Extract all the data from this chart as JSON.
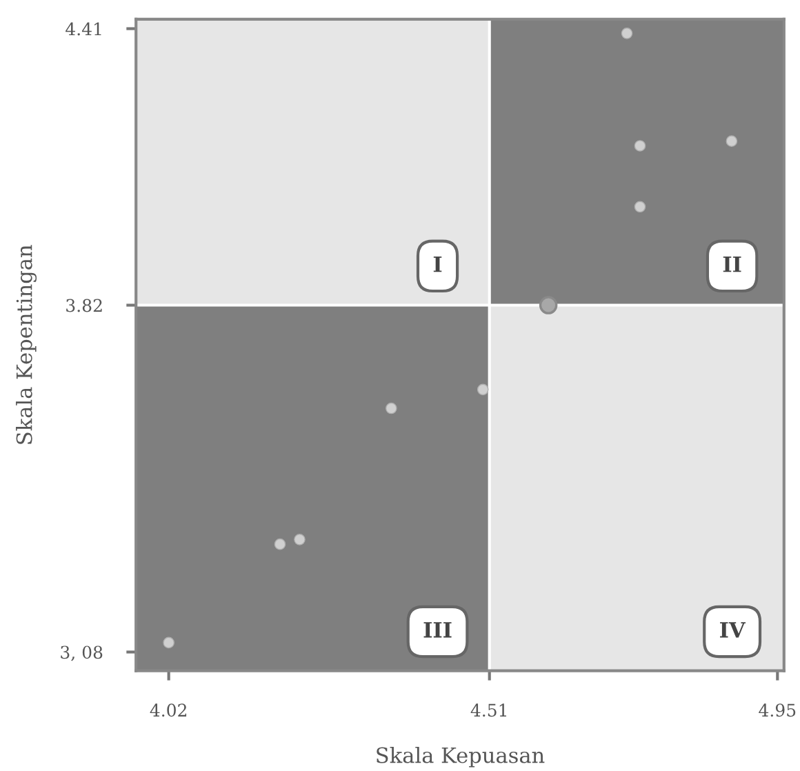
{
  "chart_data": {
    "type": "scatter",
    "xlabel": "Skala Kepuasan",
    "ylabel": "Skala Kepentingan",
    "series": [
      {
        "color": "#d0d0d0",
        "x": [
          4.72,
          4.74,
          4.88,
          4.74,
          4.36,
          4.5,
          4.19,
          4.22,
          4.02
        ],
        "values": [
          4.4,
          4.16,
          4.17,
          4.03,
          3.6,
          3.64,
          3.31,
          3.32,
          3.1
        ]
      },
      {
        "color": "#a8a8a8",
        "x": [
          4.6
        ],
        "values": [
          3.82
        ]
      }
    ],
    "xlim": [
      3.97,
      4.96
    ],
    "ylim": [
      3.04,
      4.43
    ],
    "xticks": [
      4.02,
      4.51,
      4.95
    ],
    "yticks": [
      {
        "value": 3.08,
        "label": "3, 08"
      },
      3.82,
      4.41
    ],
    "ref_lines": [
      {
        "axis": "x",
        "value": 4.51,
        "color": "#ffffff"
      },
      {
        "axis": "y",
        "value": 3.82,
        "color": "#ffffff"
      }
    ],
    "annotations": [
      "I",
      "II",
      "III",
      "IV"
    ],
    "marker": "circle",
    "grid": false,
    "legend": false
  }
}
